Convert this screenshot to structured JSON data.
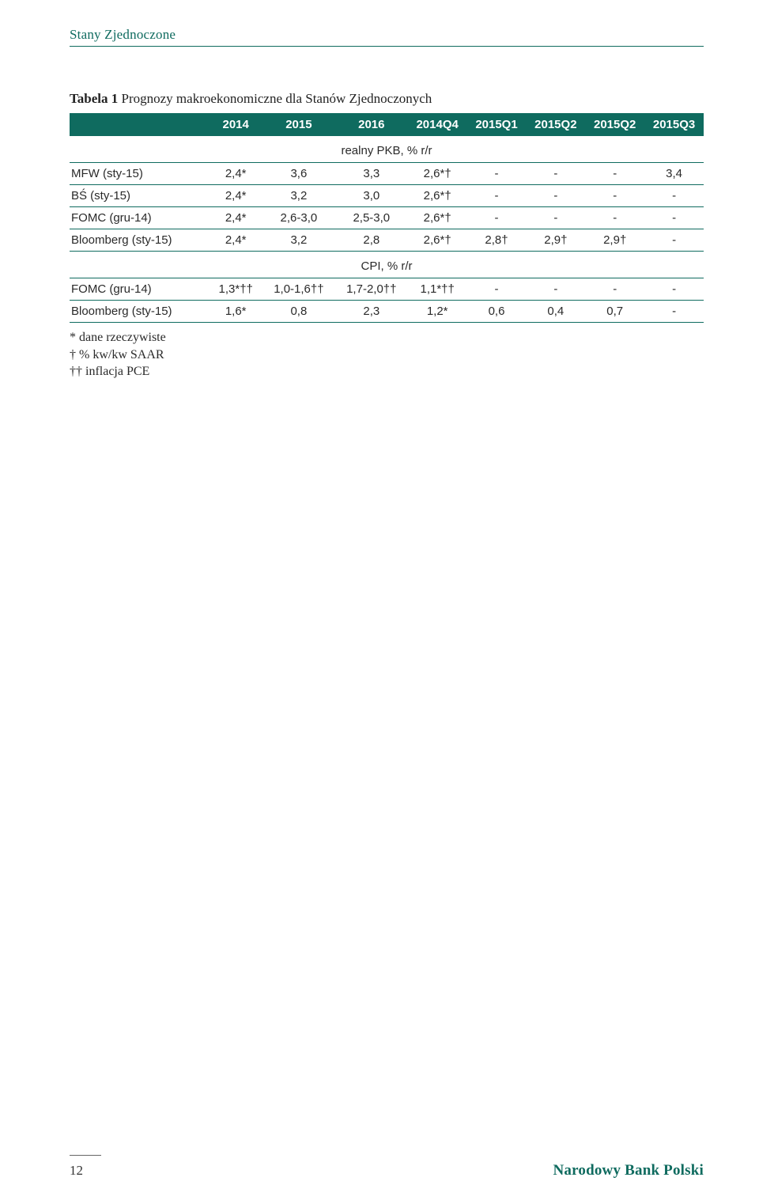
{
  "header": {
    "text": "Stany Zjednoczone"
  },
  "caption": {
    "bold": "Tabela 1",
    "rest": " Prognozy makroekonomiczne dla Stanów Zjednoczonych"
  },
  "table": {
    "header_bg": "#0f6b5f",
    "header_fg": "#ffffff",
    "rule_color": "#0f6b5f",
    "columns": [
      "",
      "2014",
      "2015",
      "2016",
      "2014Q4",
      "2015Q1",
      "2015Q2",
      "2015Q2",
      "2015Q3"
    ],
    "sections": [
      {
        "title": "realny PKB, % r/r",
        "rows": [
          {
            "label": "MFW (sty-15)",
            "cells": [
              "2,4*",
              "3,6",
              "3,3",
              "2,6*†",
              "-",
              "-",
              "-",
              "3,4"
            ]
          },
          {
            "label": "BŚ (sty-15)",
            "cells": [
              "2,4*",
              "3,2",
              "3,0",
              "2,6*†",
              "-",
              "-",
              "-",
              "-"
            ]
          },
          {
            "label": "FOMC (gru-14)",
            "cells": [
              "2,4*",
              "2,6-3,0",
              "2,5-3,0",
              "2,6*†",
              "-",
              "-",
              "-",
              "-"
            ]
          },
          {
            "label": "Bloomberg (sty-15)",
            "cells": [
              "2,4*",
              "3,2",
              "2,8",
              "2,6*†",
              "2,8†",
              "2,9†",
              "2,9†",
              "-"
            ]
          }
        ]
      },
      {
        "title": "CPI, % r/r",
        "rows": [
          {
            "label": "FOMC (gru-14)",
            "cells": [
              "1,3*††",
              "1,0-1,6††",
              "1,7-2,0††",
              "1,1*††",
              "-",
              "-",
              "-",
              "-"
            ]
          },
          {
            "label": "Bloomberg (sty-15)",
            "cells": [
              "1,6*",
              "0,8",
              "2,3",
              "1,2*",
              "0,6",
              "0,4",
              "0,7",
              "-"
            ]
          }
        ]
      }
    ]
  },
  "notes": [
    "* dane rzeczywiste",
    "† % kw/kw SAAR",
    "†† inflacja PCE"
  ],
  "footer": {
    "page": "12",
    "bank": "Narodowy Bank Polski"
  }
}
